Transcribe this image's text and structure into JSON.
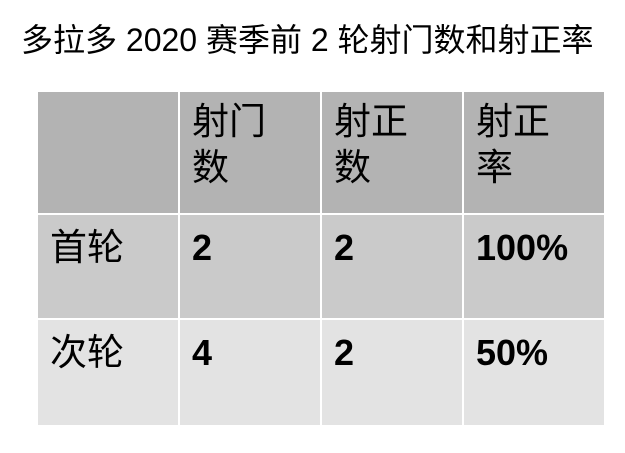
{
  "title": "多拉多 2020 赛季前 2 轮射门数和射正率",
  "table": {
    "columns": [
      "",
      "射门数",
      "射正数",
      "射正率"
    ],
    "rows": [
      [
        "首轮",
        "2",
        "2",
        "100%"
      ],
      [
        "次轮",
        "4",
        "2",
        "50%"
      ]
    ]
  },
  "colors": {
    "header_bg": "#b3b3b3",
    "row1_bg": "#cacaca",
    "row2_bg": "#e3e3e3",
    "separator": "#ffffff",
    "text": "#000000"
  },
  "chart_data": {
    "type": "table",
    "title": "多拉多 2020 赛季前 2 轮射门数和射正率",
    "columns": [
      "",
      "射门数",
      "射正数",
      "射正率"
    ],
    "rows": [
      [
        "首轮",
        "2",
        "2",
        "100%"
      ],
      [
        "次轮",
        "4",
        "2",
        "50%"
      ]
    ],
    "series": [
      {
        "name": "射门数",
        "categories": [
          "首轮",
          "次轮"
        ],
        "values": [
          2,
          4
        ]
      },
      {
        "name": "射正数",
        "categories": [
          "首轮",
          "次轮"
        ],
        "values": [
          2,
          2
        ]
      },
      {
        "name": "射正率",
        "categories": [
          "首轮",
          "次轮"
        ],
        "values": [
          "100%",
          "50%"
        ]
      }
    ]
  }
}
